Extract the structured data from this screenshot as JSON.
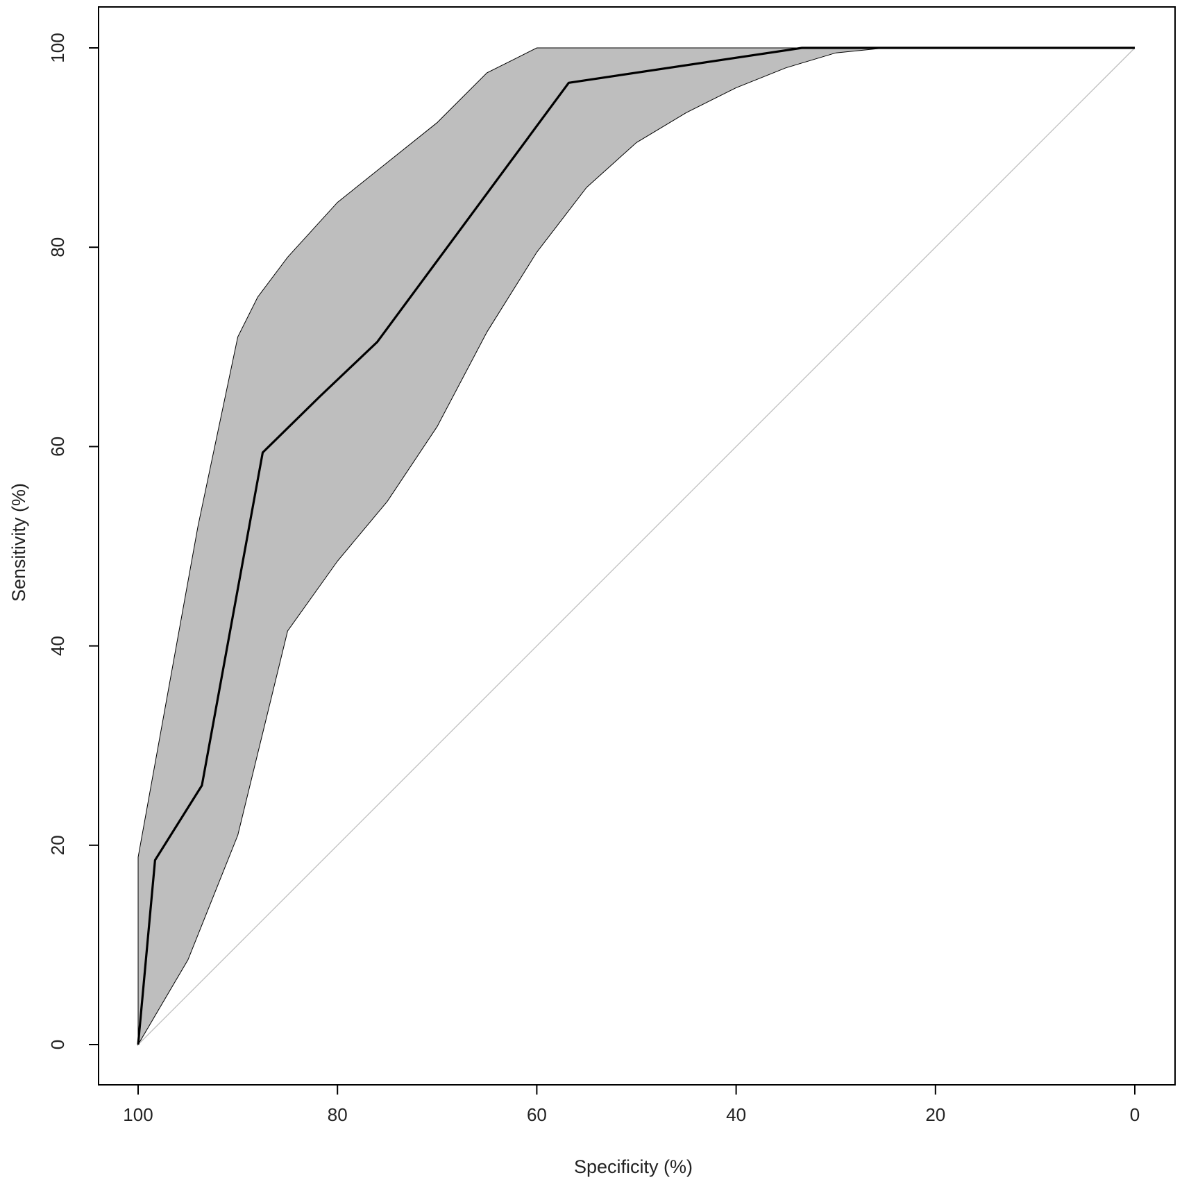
{
  "chart_data": {
    "type": "line",
    "xlabel": "Specificity (%)",
    "ylabel": "Sensitivity (%)",
    "xlim": [
      100,
      0
    ],
    "ylim": [
      0,
      100
    ],
    "x_reversed": true,
    "grid": false,
    "x_ticks": [
      100,
      80,
      60,
      40,
      20,
      0
    ],
    "y_ticks": [
      0,
      20,
      40,
      60,
      80,
      100
    ],
    "x_tick_labels": [
      "100",
      "80",
      "60",
      "40",
      "20",
      "0"
    ],
    "y_tick_labels": [
      "0",
      "20",
      "40",
      "60",
      "80",
      "100"
    ],
    "series": [
      {
        "x": [
          100,
          98.3,
          93.6,
          87.5,
          81.8,
          76.0,
          56.8,
          33.4,
          0
        ],
        "y": [
          0,
          18.5,
          26.0,
          59.4,
          65.0,
          70.5,
          96.5,
          100,
          100
        ],
        "color": "#000000"
      }
    ],
    "confidence_band": {
      "fill": "#bebebe",
      "upper": {
        "x": [
          100,
          100,
          94,
          90,
          88,
          85,
          80,
          75,
          70,
          65,
          62,
          60,
          30,
          0
        ],
        "y": [
          0,
          18.8,
          52,
          71,
          75,
          79,
          84.5,
          88.5,
          92.5,
          97.5,
          99,
          100,
          100,
          100
        ]
      },
      "lower": {
        "x": [
          100,
          95,
          90,
          85,
          80,
          75,
          70,
          65,
          60,
          55,
          50,
          45,
          40,
          35,
          30,
          25,
          0
        ],
        "y": [
          0,
          8.5,
          21,
          41.5,
          48.5,
          54.5,
          62,
          71.5,
          79.5,
          86,
          90.5,
          93.5,
          96,
          98,
          99.5,
          100,
          100
        ]
      }
    },
    "reference_line": {
      "x": [
        100,
        0
      ],
      "y": [
        0,
        100
      ],
      "color": "#bdbdbd"
    }
  }
}
